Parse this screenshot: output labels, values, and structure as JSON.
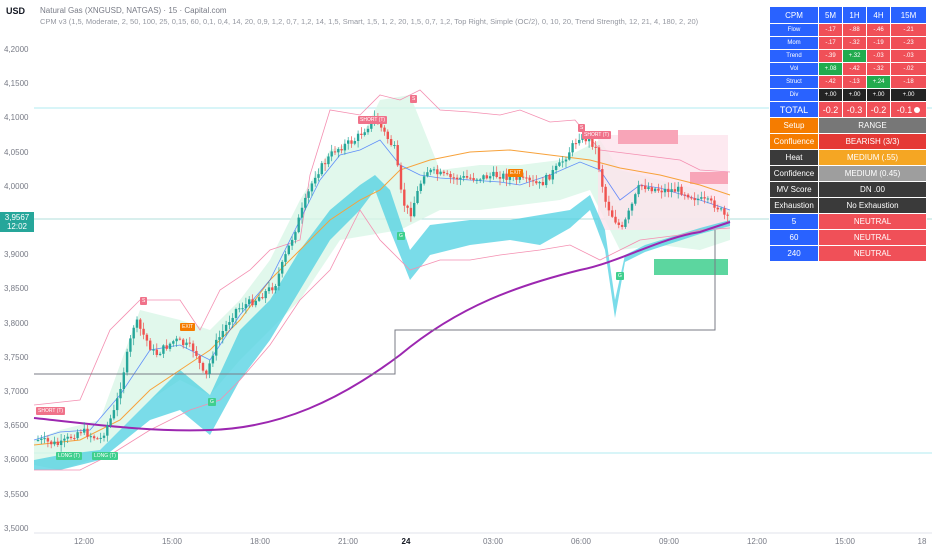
{
  "header": {
    "currency": "USD",
    "symbol_line": "Natural Gas (XNGUSD, NATGAS) · 15 · Capital.com",
    "indicator_line": "CPM v3 (1,5, Moderate, 2, 50, 100, 25, 0,15, 60, 0,1, 0,4, 14, 20, 0,9, 1,2, 0,7, 1,2, 14, 1,5, Smart, 1,5, 1, 2, 20, 1,5, 0,7, 1,2, Top Right, Simple (OC/2), 0, 10, 20, Trend Strength, 12, 21, 4, 180, 2, 20)"
  },
  "price_axis": {
    "labels": [
      "4,2000",
      "4,1500",
      "4,1000",
      "4,0500",
      "4,0000",
      "3,9500",
      "3,9000",
      "3,8500",
      "3,8000",
      "3,7500",
      "3,7000",
      "3,6500",
      "3,6000",
      "3,5500",
      "3,5000"
    ],
    "current_price": "3,9567",
    "countdown": "12:02"
  },
  "time_axis": {
    "labels": [
      {
        "text": "12:00",
        "bold": false
      },
      {
        "text": "15:00",
        "bold": false
      },
      {
        "text": "18:00",
        "bold": false
      },
      {
        "text": "21:00",
        "bold": false
      },
      {
        "text": "24",
        "bold": true
      },
      {
        "text": "03:00",
        "bold": false
      },
      {
        "text": "06:00",
        "bold": false
      },
      {
        "text": "09:00",
        "bold": false
      },
      {
        "text": "12:00",
        "bold": false
      },
      {
        "text": "15:00",
        "bold": false
      },
      {
        "text": "18",
        "bold": false
      }
    ]
  },
  "markers": [
    {
      "text": "SHORT (T)",
      "kind": "short"
    },
    {
      "text": "LONG (T)",
      "kind": "long"
    },
    {
      "text": "LONG (T)",
      "kind": "long"
    },
    {
      "text": "EXIT",
      "kind": "exit"
    },
    {
      "text": "EXIT",
      "kind": "exit"
    },
    {
      "text": "SHORT (T)",
      "kind": "short"
    },
    {
      "text": "SHORT (T)",
      "kind": "short"
    },
    {
      "text": "S",
      "kind": "s"
    },
    {
      "text": "S",
      "kind": "s"
    },
    {
      "text": "S",
      "kind": "s"
    },
    {
      "text": "G",
      "kind": "g"
    },
    {
      "text": "G",
      "kind": "g"
    },
    {
      "text": "G",
      "kind": "g"
    }
  ],
  "table": {
    "header": [
      "CPM",
      "5M",
      "1H",
      "4H",
      "15M"
    ],
    "metrics": [
      {
        "label": "Flow",
        "values": [
          "-.17",
          "-.88",
          "-.46",
          "-.21"
        ],
        "signs": [
          "neg",
          "neg",
          "neg",
          "neg"
        ]
      },
      {
        "label": "Mom",
        "values": [
          "-.17",
          "-.32",
          "-.19",
          "-.23"
        ],
        "signs": [
          "neg",
          "neg",
          "neg",
          "neg"
        ]
      },
      {
        "label": "Trend",
        "values": [
          "-.39",
          "+.32",
          "-.03",
          "-.03"
        ],
        "signs": [
          "neg",
          "pos",
          "neg",
          "neg"
        ]
      },
      {
        "label": "Vol",
        "values": [
          "+.08",
          "-.42",
          "-.32",
          "-.02"
        ],
        "signs": [
          "pos",
          "neg",
          "neg",
          "neg"
        ]
      },
      {
        "label": "Struct",
        "values": [
          "-.42",
          "-.13",
          "+.24",
          "-.18"
        ],
        "signs": [
          "neg",
          "neg",
          "pos",
          "neg"
        ]
      },
      {
        "label": "Div",
        "values": [
          "+.00",
          "+.00",
          "+.00",
          "+.00"
        ],
        "signs": [
          "neu",
          "neu",
          "neu",
          "neu"
        ]
      }
    ],
    "total": {
      "label": "TOTAL",
      "values": [
        "-0.2",
        "-0.3",
        "-0.2",
        "-0.1"
      ]
    },
    "rows": [
      {
        "label": "Setup",
        "value": "RANGE"
      },
      {
        "label": "Confluence",
        "value": "BEARISH (3/3)"
      },
      {
        "label": "Heat",
        "value": "MEDIUM (.55)"
      },
      {
        "label": "Confidence",
        "value": "MEDIUM (0.45)"
      },
      {
        "label": "MV Score",
        "value": "DN .00"
      },
      {
        "label": "Exhaustion",
        "value": "No Exhaustion"
      },
      {
        "label": "5",
        "value": "NEUTRAL"
      },
      {
        "label": "60",
        "value": "NEUTRAL"
      },
      {
        "label": "240",
        "value": "NEUTRAL"
      }
    ]
  },
  "colors": {
    "bull": "#26a69a",
    "bear": "#ef5350",
    "ema_purple": "#9c27b0",
    "ema_orange": "#f7a23b",
    "cloud": "#4dd0e1",
    "band_green": "#b9f6ca",
    "stop_line": "#787b86"
  }
}
